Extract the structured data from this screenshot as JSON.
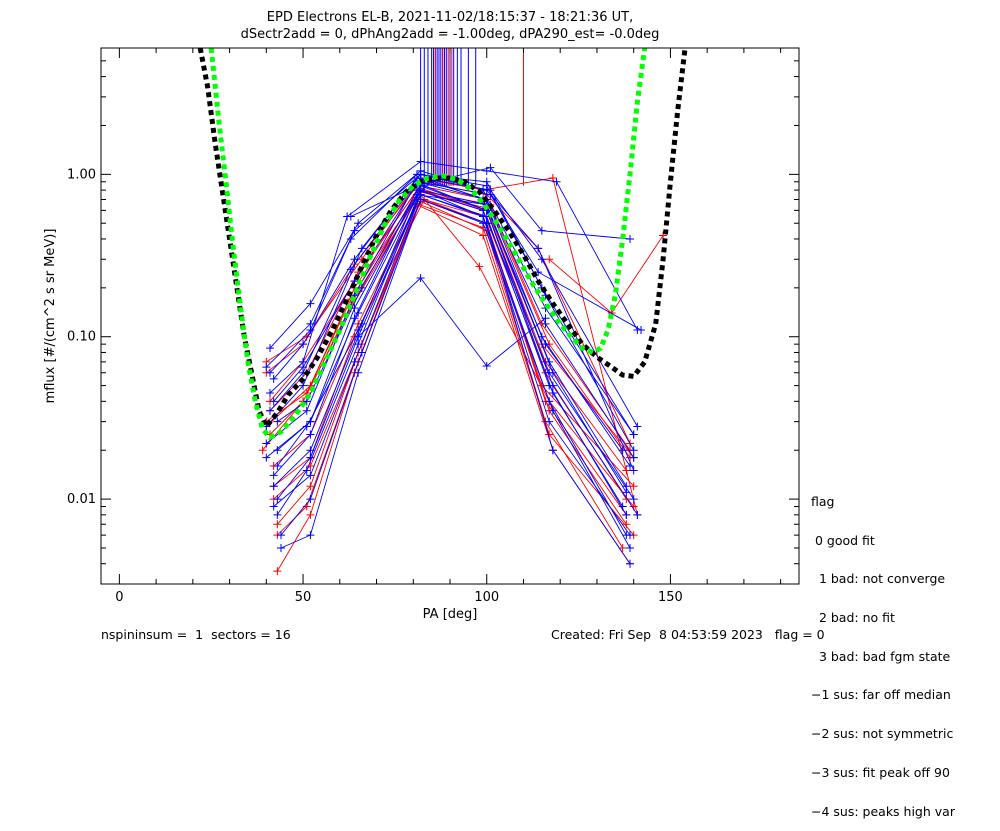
{
  "chart_data": {
    "type": "line",
    "title": "EPD Electrons EL-B, 2021-11-02/18:15:37 - 18:21:36 UT,",
    "subtitle": "dSectr2add = 0, dPhAng2add = -1.00deg, dPA290_est=  -0.0deg",
    "xlabel": "PA [deg]",
    "ylabel": "mflux [#/(cm^2 s sr MeV)]",
    "xlim": [
      -5,
      185
    ],
    "ylim": [
      0.003,
      6
    ],
    "yscale": "log",
    "xticks": [
      0,
      50,
      100,
      150
    ],
    "yticks": [
      0.01,
      0.1,
      1.0
    ],
    "ytick_labels": [
      "0.01",
      "0.10",
      "1.00"
    ],
    "colors": {
      "flag0": "#0000ff",
      "flag_bad": "#ff0000",
      "model_black": "#000000",
      "model_green": "#00ff00"
    },
    "model_curves": [
      {
        "color": "black",
        "style": "dashed",
        "x": [
          22,
          24,
          26,
          28,
          30,
          32,
          34,
          36,
          38,
          40,
          43,
          46,
          50,
          54,
          58,
          62,
          66,
          70,
          74,
          78,
          82,
          86,
          90,
          94,
          98,
          102,
          106,
          110,
          114,
          118,
          122,
          126,
          130,
          134,
          137,
          140,
          143,
          146,
          148,
          150,
          152,
          154
        ],
        "y": [
          6,
          3.5,
          1.6,
          0.8,
          0.4,
          0.2,
          0.1,
          0.06,
          0.035,
          0.028,
          0.034,
          0.044,
          0.055,
          0.075,
          0.11,
          0.17,
          0.27,
          0.42,
          0.6,
          0.78,
          0.9,
          0.95,
          0.95,
          0.9,
          0.78,
          0.6,
          0.45,
          0.32,
          0.22,
          0.16,
          0.12,
          0.09,
          0.075,
          0.065,
          0.058,
          0.057,
          0.07,
          0.12,
          0.3,
          0.9,
          2.5,
          6
        ]
      },
      {
        "color": "green",
        "style": "dashed",
        "x": [
          25,
          27,
          29,
          31,
          33,
          35,
          37,
          39,
          41,
          44,
          48,
          52,
          56,
          60,
          64,
          68,
          72,
          76,
          80,
          84,
          88,
          92,
          96,
          100,
          104,
          108,
          112,
          116,
          120,
          123,
          126,
          129,
          131,
          133,
          135,
          137,
          139,
          141,
          143
        ],
        "y": [
          6,
          2.2,
          0.9,
          0.35,
          0.15,
          0.07,
          0.04,
          0.027,
          0.024,
          0.026,
          0.033,
          0.045,
          0.07,
          0.11,
          0.18,
          0.3,
          0.48,
          0.68,
          0.85,
          0.95,
          0.98,
          0.93,
          0.8,
          0.62,
          0.45,
          0.32,
          0.22,
          0.16,
          0.12,
          0.1,
          0.085,
          0.08,
          0.085,
          0.11,
          0.18,
          0.4,
          1.0,
          2.8,
          6
        ]
      }
    ],
    "spikes": {
      "blue_x": [
        82,
        83,
        84,
        85,
        85.5,
        86,
        86.5,
        87,
        87.5,
        88,
        88.5,
        89,
        90,
        91,
        92,
        93,
        95,
        97
      ],
      "red_x": [
        86,
        88,
        89.5,
        90.5,
        110
      ],
      "y_bottom": 0.85,
      "y_top": 6
    },
    "measured": {
      "blue": [
        {
          "x": [
            40,
            52,
            64,
            81,
            100,
            117,
            138
          ],
          "y": [
            0.018,
            0.03,
            0.15,
            0.75,
            0.65,
            0.07,
            0.012
          ]
        },
        {
          "x": [
            41,
            52,
            65,
            82,
            99,
            116,
            140
          ],
          "y": [
            0.085,
            0.16,
            0.5,
            1.05,
            0.8,
            0.15,
            0.025
          ]
        },
        {
          "x": [
            42,
            50,
            64,
            81,
            100,
            115,
            139
          ],
          "y": [
            0.055,
            0.09,
            0.3,
            0.95,
            0.7,
            0.1,
            0.016
          ]
        },
        {
          "x": [
            42,
            52,
            66,
            82,
            100,
            118,
            141
          ],
          "y": [
            0.012,
            0.02,
            0.12,
            0.85,
            0.6,
            0.05,
            0.008
          ]
        },
        {
          "x": [
            43,
            51,
            65,
            82,
            99,
            117,
            138
          ],
          "y": [
            0.008,
            0.015,
            0.09,
            0.8,
            0.55,
            0.04,
            0.006
          ]
        },
        {
          "x": [
            41,
            50,
            63,
            81,
            101,
            114,
            142
          ],
          "y": [
            0.035,
            0.06,
            0.26,
            0.9,
            0.75,
            0.25,
            0.11
          ]
        },
        {
          "x": [
            44,
            52,
            65,
            82,
            100,
            118,
            139
          ],
          "y": [
            0.005,
            0.006,
            0.06,
            0.7,
            0.5,
            0.02,
            0.004
          ]
        },
        {
          "x": [
            40,
            52,
            64,
            82,
            100,
            115,
            140
          ],
          "y": [
            0.065,
            0.12,
            0.45,
            1.0,
            0.85,
            0.2,
            0.025
          ]
        },
        {
          "x": [
            43,
            51,
            66,
            83,
            99,
            116,
            137
          ],
          "y": [
            0.03,
            0.04,
            0.2,
            0.95,
            0.7,
            0.09,
            0.02
          ]
        },
        {
          "x": [
            42,
            52,
            64,
            81,
            99,
            117,
            140
          ],
          "y": [
            0.014,
            0.025,
            0.13,
            0.8,
            0.6,
            0.06,
            0.01
          ]
        },
        {
          "x": [
            41,
            50,
            62,
            82,
            100,
            119,
            141
          ],
          "y": [
            0.045,
            0.07,
            0.55,
            1.2,
            1.05,
            0.9,
            0.11
          ]
        },
        {
          "x": [
            43,
            52,
            65,
            82,
            100,
            117,
            138
          ],
          "y": [
            0.01,
            0.018,
            0.1,
            0.75,
            0.55,
            0.05,
            0.008
          ]
        },
        {
          "x": [
            40,
            51,
            64,
            81,
            100,
            116,
            140
          ],
          "y": [
            0.022,
            0.035,
            0.18,
            0.9,
            0.7,
            0.12,
            0.018
          ]
        },
        {
          "x": [
            44,
            52,
            66,
            82,
            99,
            118,
            139
          ],
          "y": [
            0.006,
            0.01,
            0.08,
            0.7,
            0.5,
            0.035,
            0.005
          ]
        },
        {
          "x": [
            42,
            50,
            64,
            82,
            101,
            115,
            141
          ],
          "y": [
            0.04,
            0.065,
            0.22,
            0.95,
            0.8,
            0.3,
            0.028
          ]
        },
        {
          "x": [
            43,
            51,
            65,
            83,
            100,
            118,
            137
          ],
          "y": [
            0.016,
            0.028,
            0.11,
            0.85,
            0.6,
            0.045,
            0.009
          ]
        },
        {
          "x": [
            41,
            52,
            63,
            81,
            100,
            116,
            140
          ],
          "y": [
            0.06,
            0.11,
            0.4,
            1.0,
            0.9,
            0.18,
            0.02
          ]
        },
        {
          "x": [
            42,
            52,
            64,
            82,
            99,
            117,
            139
          ],
          "y": [
            0.009,
            0.014,
            0.07,
            0.75,
            0.55,
            0.03,
            0.006
          ]
        },
        {
          "x": [
            40,
            50,
            66,
            82,
            100,
            114,
            140
          ],
          "y": [
            0.028,
            0.05,
            0.35,
            1.0,
            0.8,
            0.35,
            0.015
          ]
        },
        {
          "x": [
            43,
            52,
            65,
            82,
            100,
            118,
            138
          ],
          "y": [
            0.02,
            0.03,
            0.14,
            0.8,
            0.65,
            0.06,
            0.011
          ]
        },
        {
          "x": [
            65,
            82,
            100,
            116
          ],
          "y": [
            0.1,
            0.23,
            0.066,
            0.13
          ]
        },
        {
          "x": [
            63,
            81,
            101,
            115,
            139
          ],
          "y": [
            0.55,
            0.85,
            1.1,
            0.45,
            0.4
          ]
        }
      ],
      "red": [
        {
          "x": [
            40,
            52,
            64,
            82,
            99,
            116,
            138
          ],
          "y": [
            0.028,
            0.05,
            0.2,
            0.8,
            0.6,
            0.06,
            0.01
          ]
        },
        {
          "x": [
            41,
            51,
            65,
            82,
            100,
            117,
            139
          ],
          "y": [
            0.035,
            0.06,
            0.25,
            0.85,
            0.7,
            0.09,
            0.018
          ]
        },
        {
          "x": [
            39,
            50,
            63,
            81,
            99,
            115,
            140
          ],
          "y": [
            0.02,
            0.04,
            0.15,
            0.72,
            0.55,
            0.05,
            0.012
          ]
        },
        {
          "x": [
            42,
            52,
            64,
            83,
            100,
            117,
            138
          ],
          "y": [
            0.012,
            0.018,
            0.1,
            0.7,
            0.5,
            0.035,
            0.007
          ]
        },
        {
          "x": [
            40,
            51,
            66,
            82,
            99,
            118,
            141
          ],
          "y": [
            0.07,
            0.1,
            0.3,
            0.95,
            0.8,
            0.95,
            0.008
          ]
        },
        {
          "x": [
            43,
            52,
            65,
            82,
            100,
            116,
            137
          ],
          "y": [
            0.007,
            0.012,
            0.08,
            0.68,
            0.45,
            0.03,
            0.005
          ]
        },
        {
          "x": [
            41,
            50,
            64,
            81,
            101,
            115,
            139
          ],
          "y": [
            0.04,
            0.07,
            0.22,
            0.8,
            0.65,
            0.12,
            0.02
          ]
        },
        {
          "x": [
            42,
            52,
            65,
            82,
            98,
            117,
            140
          ],
          "y": [
            0.016,
            0.025,
            0.12,
            0.75,
            0.27,
            0.04,
            0.009
          ]
        },
        {
          "x": [
            40,
            51,
            63,
            82,
            100,
            116,
            138
          ],
          "y": [
            0.03,
            0.045,
            0.17,
            0.82,
            0.6,
            0.07,
            0.015
          ]
        },
        {
          "x": [
            43,
            52,
            64,
            81,
            99,
            118,
            139
          ],
          "y": [
            0.0036,
            0.008,
            0.06,
            0.65,
            0.42,
            0.02,
            0.004
          ]
        },
        {
          "x": [
            41,
            50,
            65,
            82,
            100,
            115,
            140
          ],
          "y": [
            0.025,
            0.04,
            0.19,
            0.78,
            0.62,
            0.09,
            0.018
          ]
        },
        {
          "x": [
            42,
            52,
            66,
            82,
            100,
            116,
            138
          ],
          "y": [
            0.01,
            0.016,
            0.09,
            0.7,
            0.5,
            0.04,
            0.008
          ]
        },
        {
          "x": [
            40,
            50,
            64,
            82,
            100,
            114,
            139
          ],
          "y": [
            0.06,
            0.09,
            0.28,
            0.9,
            0.75,
            0.35,
            0.022
          ]
        },
        {
          "x": [
            43,
            51,
            65,
            81,
            99,
            117,
            140
          ],
          "y": [
            0.006,
            0.009,
            0.07,
            0.66,
            0.47,
            0.025,
            0.006
          ]
        },
        {
          "x": [
            117,
            134,
            148
          ],
          "y": [
            0.3,
            0.14,
            0.42
          ]
        }
      ]
    }
  },
  "legend": {
    "lines": [
      "flag",
      " 0 good fit",
      "  1 bad: not converge",
      "  2 bad: no fit",
      "  3 bad: bad fgm state",
      "−1 sus: far off median",
      "−2 sus: not symmetric",
      "−3 sus: fit peak off 90",
      "−4 sus: peaks high var"
    ]
  },
  "footer": {
    "left": "nspininsum =  1  sectors = 16",
    "right": "Created: Fri Sep  8 04:53:59 2023   flag = 0"
  }
}
